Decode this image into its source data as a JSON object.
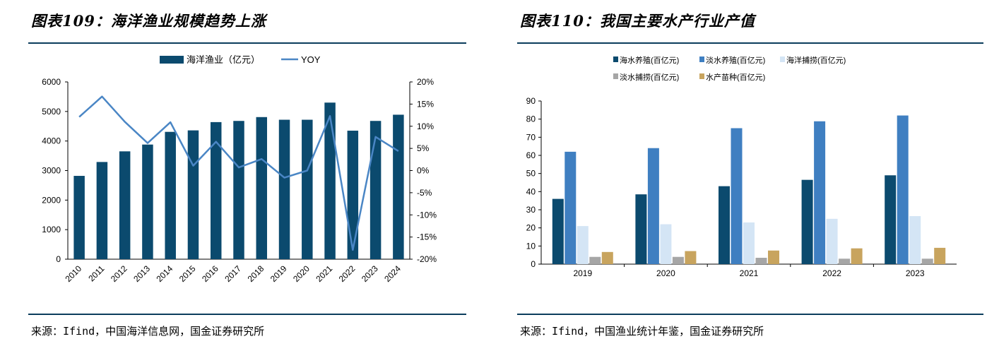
{
  "left": {
    "title": "图表109：海洋渔业规模趋势上涨",
    "source": "来源：Ifind，中国海洋信息网，国金证券研究所",
    "colors": {
      "bar": "#0b4a6e",
      "line": "#4a86c5"
    },
    "chart_data": {
      "type": "bar+line",
      "categories": [
        "2010",
        "2011",
        "2012",
        "2013",
        "2014",
        "2015",
        "2016",
        "2017",
        "2018",
        "2019",
        "2020",
        "2021",
        "2022",
        "2023",
        "2024"
      ],
      "series": [
        {
          "name": "海洋渔业（亿元）",
          "type": "bar",
          "axis": "left",
          "values": [
            2820,
            3290,
            3650,
            3880,
            4310,
            4360,
            4640,
            4680,
            4810,
            4720,
            4720,
            5300,
            4350,
            4680,
            4890
          ]
        },
        {
          "name": "YOY",
          "type": "line",
          "axis": "right",
          "values": [
            12.1,
            16.7,
            11.0,
            6.2,
            10.9,
            1.1,
            6.5,
            0.7,
            2.6,
            -1.6,
            0.0,
            12.3,
            -17.9,
            7.6,
            4.4
          ]
        }
      ],
      "ylim_left": [
        0,
        6000
      ],
      "yticks_left": [
        "0",
        "1000",
        "2000",
        "3000",
        "4000",
        "5000",
        "6000"
      ],
      "ylim_right": [
        -20,
        20
      ],
      "yticks_right": [
        "-20%",
        "-15%",
        "-10%",
        "-5%",
        "0%",
        "5%",
        "10%",
        "15%",
        "20%"
      ],
      "legend_position": "top",
      "grid": false
    }
  },
  "right": {
    "title": "图表110：我国主要水产行业产值",
    "source": "来源：Ifind，中国渔业统计年鉴，国金证券研究所",
    "chart_data": {
      "type": "bar",
      "categories": [
        "2019",
        "2020",
        "2021",
        "2022",
        "2023"
      ],
      "series": [
        {
          "name": "海水养殖(百亿元)",
          "color": "#0b4a6e",
          "values": [
            36.0,
            38.5,
            43.0,
            46.5,
            49.0
          ]
        },
        {
          "name": "淡水养殖(百亿元)",
          "color": "#3f7fc1",
          "values": [
            62.0,
            64.0,
            75.0,
            78.8,
            82.0
          ]
        },
        {
          "name": "海洋捕捞(百亿元)",
          "color": "#d4e5f5",
          "values": [
            21.0,
            22.0,
            23.0,
            25.0,
            26.5
          ]
        },
        {
          "name": "淡水捕捞(百亿元)",
          "color": "#a6a6a6",
          "values": [
            4.0,
            4.0,
            3.5,
            3.0,
            3.0
          ]
        },
        {
          "name": "水产苗种(百亿元)",
          "color": "#c8a45e",
          "values": [
            6.7,
            7.2,
            7.5,
            8.7,
            9.0
          ]
        }
      ],
      "ylim": [
        0,
        90
      ],
      "yticks": [
        "0",
        "10",
        "20",
        "30",
        "40",
        "50",
        "60",
        "70",
        "80",
        "90"
      ],
      "legend_position": "top",
      "grid": false
    }
  }
}
